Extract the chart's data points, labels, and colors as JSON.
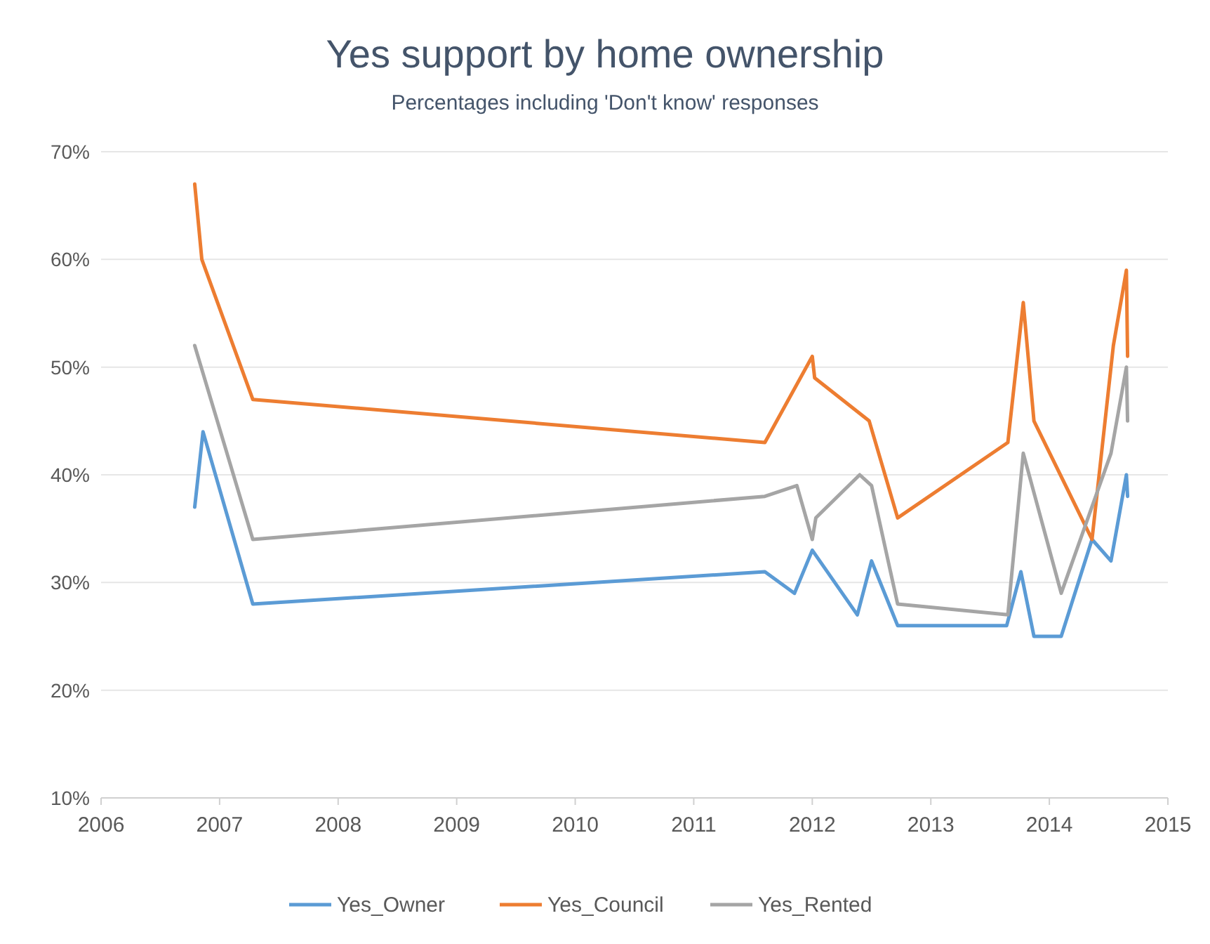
{
  "chart_data": {
    "type": "line",
    "title": "Yes support by home ownership",
    "subtitle": "Percentages including 'Don't know' responses",
    "xlim": [
      2006,
      2015
    ],
    "xticks": [
      2006,
      2007,
      2008,
      2009,
      2010,
      2011,
      2012,
      2013,
      2014,
      2015
    ],
    "ylim": [
      10,
      70
    ],
    "yticks": [
      {
        "value": 10,
        "label": "10%"
      },
      {
        "value": 20,
        "label": "20%"
      },
      {
        "value": 30,
        "label": "30%"
      },
      {
        "value": 40,
        "label": "40%"
      },
      {
        "value": 50,
        "label": "50%"
      },
      {
        "value": 60,
        "label": "60%"
      },
      {
        "value": 70,
        "label": "70%"
      }
    ],
    "grid": "y",
    "legend": "bottom",
    "line_style": "solid",
    "series": [
      {
        "name": "Yes_Owner",
        "color": "#5b9bd5",
        "x": [
          2006.79,
          2006.86,
          2007.28,
          2011.6,
          2011.85,
          2012.0,
          2012.38,
          2012.5,
          2012.72,
          2013.64,
          2013.76,
          2013.87,
          2014.1,
          2014.36,
          2014.52,
          2014.65,
          2014.66
        ],
        "values": [
          37,
          44,
          28,
          31,
          29,
          33,
          27,
          32,
          26,
          26,
          31,
          25,
          25,
          34,
          32,
          40,
          38
        ]
      },
      {
        "name": "Yes_Council",
        "color": "#ed7d31",
        "x": [
          2006.79,
          2006.85,
          2007.28,
          2011.6,
          2012.0,
          2012.02,
          2012.48,
          2012.72,
          2013.65,
          2013.78,
          2013.87,
          2014.36,
          2014.54,
          2014.65,
          2014.66
        ],
        "values": [
          67,
          60,
          47,
          43,
          51,
          49,
          45,
          36,
          43,
          56,
          45,
          34,
          52,
          59,
          51
        ]
      },
      {
        "name": "Yes_Rented",
        "color": "#a5a5a5",
        "x": [
          2006.79,
          2007.28,
          2011.6,
          2011.87,
          2012.0,
          2012.03,
          2012.4,
          2012.5,
          2012.72,
          2013.65,
          2013.78,
          2014.1,
          2014.52,
          2014.65,
          2014.66
        ],
        "values": [
          52,
          34,
          38,
          39,
          34,
          36,
          40,
          39,
          28,
          27,
          42,
          29,
          42,
          50,
          45
        ]
      }
    ]
  }
}
